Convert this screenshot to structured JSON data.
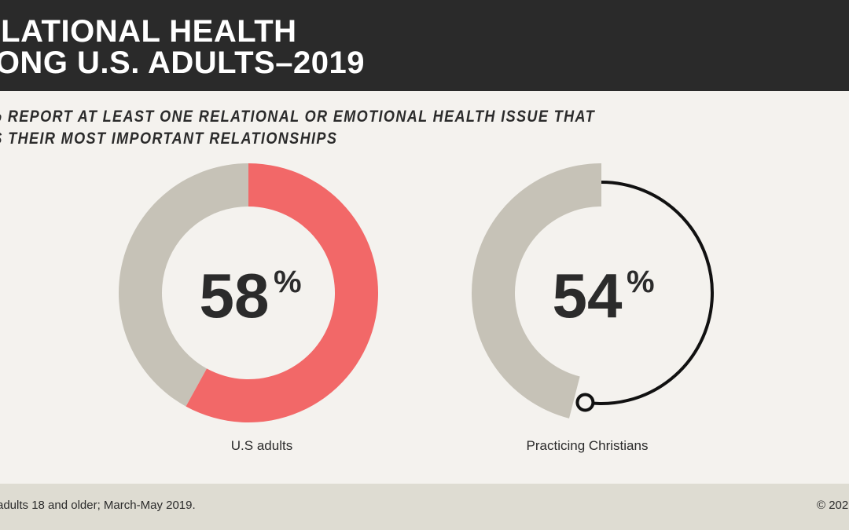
{
  "header": {
    "title_line1": "ELATIONAL HEALTH",
    "title_line2": "MONG U.S. ADULTS–2019"
  },
  "subtitle": {
    "line1": "% REPORT AT LEAST ONE RELATIONAL OR EMOTIONAL HEALTH ISSUE THAT",
    "line2": "TS THEIR MOST IMPORTANT RELATIONSHIPS"
  },
  "chart_data": [
    {
      "type": "pie",
      "title": "",
      "categories": [
        "U.S adults"
      ],
      "values": [
        58
      ],
      "unit": "%",
      "value_label": "58",
      "unit_label": "%",
      "label": "U.S adults",
      "colors": {
        "filled": "#f26868",
        "remainder": "#c6c2b7"
      }
    },
    {
      "type": "pie",
      "title": "",
      "categories": [
        "Practicing Christians"
      ],
      "values": [
        54
      ],
      "unit": "%",
      "value_label": "54",
      "unit_label": "%",
      "label": "Practicing Christians",
      "colors": {
        "filled": "#111111",
        "remainder": "#c6c2b7"
      }
    }
  ],
  "footer": {
    "note": "adults 18 and older; March-May 2019.",
    "copyright": "© 202"
  }
}
